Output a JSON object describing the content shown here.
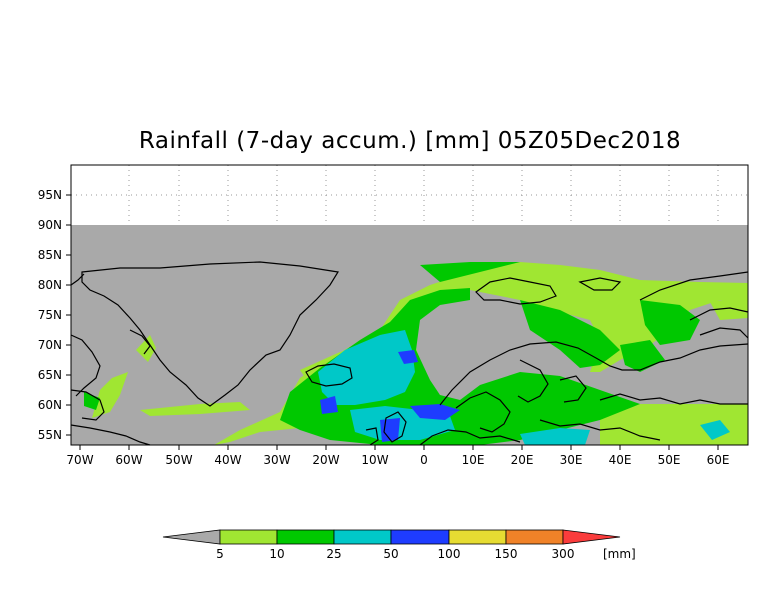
{
  "title": "Rainfall (7-day accum.) [mm] 05Z05Dec2018",
  "map": {
    "lat_ticks": [
      "95N",
      "90N",
      "85N",
      "80N",
      "75N",
      "70N",
      "65N",
      "60N",
      "55N"
    ],
    "lon_ticks": [
      "70W",
      "60W",
      "50W",
      "40W",
      "30W",
      "20W",
      "10W",
      "0",
      "10E",
      "20E",
      "30E",
      "40E",
      "50E",
      "60E"
    ],
    "no_data_color": "#a9a9a9",
    "coast_color": "#000000"
  },
  "colorbar": {
    "labels": [
      "5",
      "10",
      "25",
      "50",
      "100",
      "150",
      "300"
    ],
    "unit": "[mm]",
    "colors": {
      "below": "#a9a9a9",
      "c5_10": "#a0e632",
      "c10_25": "#00c800",
      "c25_50": "#00c8c8",
      "c50_100": "#1e3cff",
      "c100_150": "#e6dc32",
      "c150_300": "#f08228",
      "above": "#fa3c3c"
    }
  }
}
